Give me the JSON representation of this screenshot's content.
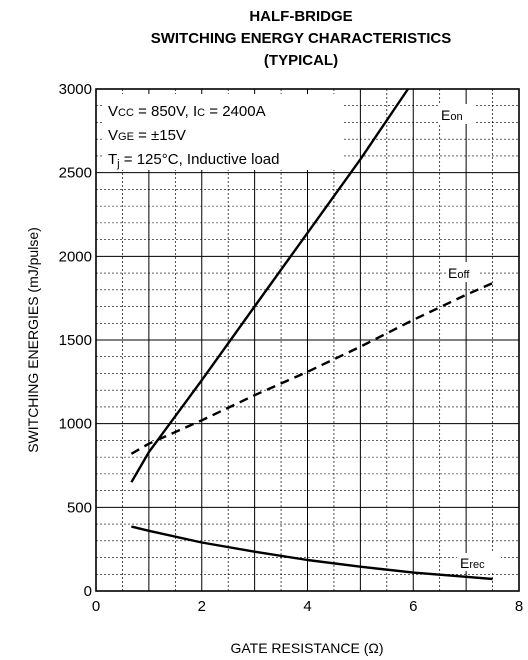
{
  "chart_data": {
    "type": "line",
    "title_lines": [
      "HALF-BRIDGE",
      "SWITCHING ENERGY CHARACTERISTICS",
      "(TYPICAL)"
    ],
    "xlabel": "GATE RESISTANCE (Ω)",
    "ylabel": "SWITCHING ENERGIES (mJ/pulse)",
    "xlim": [
      0,
      8
    ],
    "ylim": [
      0,
      3000
    ],
    "x_major_ticks": [
      0,
      2,
      4,
      6,
      8
    ],
    "y_major_ticks": [
      0,
      500,
      1000,
      1500,
      2000,
      2500,
      3000
    ],
    "grid": "major and minor",
    "annotations": {
      "vcc_main": "V",
      "vcc_sub": "CC",
      "vcc_rest": " = 850V, I",
      "ic_sub": "C",
      "ic_rest": " = 2400A",
      "vge_main": "V",
      "vge_sub": "GE",
      "vge_rest": " = ±15V",
      "tj_main": "T",
      "tj_sub": "j",
      "tj_rest": " = 125°C, Inductive load"
    },
    "series": [
      {
        "name": "E",
        "name_sub": "on",
        "style": "solid",
        "x": [
          0.67,
          1.0,
          2.0,
          3.0,
          4.0,
          5.0,
          5.9
        ],
        "y": [
          650,
          830,
          1260,
          1700,
          2140,
          2580,
          3000
        ]
      },
      {
        "name": "E",
        "name_sub": "off",
        "style": "dashed",
        "x": [
          0.67,
          1.0,
          2.0,
          3.0,
          4.0,
          5.0,
          6.0,
          7.0,
          7.5
        ],
        "y": [
          820,
          880,
          1020,
          1170,
          1310,
          1460,
          1620,
          1770,
          1840
        ]
      },
      {
        "name": "E",
        "name_sub": "rec",
        "style": "solid",
        "x": [
          0.67,
          1.0,
          2.0,
          3.0,
          4.0,
          5.0,
          6.0,
          7.0,
          7.5
        ],
        "y": [
          385,
          360,
          290,
          235,
          185,
          145,
          110,
          85,
          72
        ]
      }
    ]
  }
}
